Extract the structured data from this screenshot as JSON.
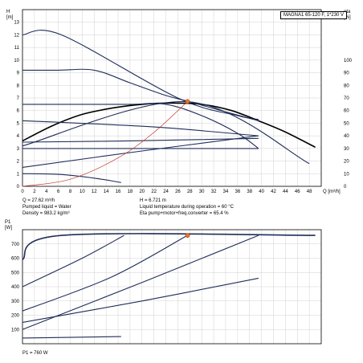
{
  "header": {
    "note": "MAGNA1 65-120 F,  1*230 V"
  },
  "info_top": {
    "left": [
      "Q = 27.62 m³/h",
      "Pumped liquid = Water",
      "Density = 983.2 kg/m³"
    ],
    "right": [
      "H = 6.721 m",
      "Liquid temperature during operation = 60 °C",
      "Eta pump+motor+freq.converter = 65.4 %"
    ]
  },
  "info_bottom": {
    "power": "P1 = 760 W"
  },
  "colors": {
    "navy": "#1f2d59",
    "black": "#000000",
    "system_curve": "#c0392b",
    "grid": "#d0d0d0",
    "duty_point": "#e8752b"
  },
  "chart_data": [
    {
      "type": "line",
      "title": "",
      "xlabel": "Q [m³/h]",
      "ylabel": "H [m]",
      "y2label": "eta [%]",
      "xlim": [
        0,
        50
      ],
      "ylim": [
        0,
        14
      ],
      "y2lim": [
        0,
        140
      ],
      "xticks": [
        0,
        2,
        4,
        6,
        8,
        10,
        12,
        14,
        16,
        18,
        20,
        22,
        24,
        26,
        28,
        30,
        32,
        34,
        36,
        38,
        40,
        42,
        44,
        46,
        48
      ],
      "yticks": [
        0,
        1,
        2,
        3,
        4,
        5,
        6,
        7,
        8,
        9,
        10,
        11,
        12,
        13
      ],
      "y2ticks": [
        0,
        10,
        20,
        30,
        40,
        50,
        60,
        70,
        80,
        90,
        100
      ],
      "grid": true,
      "duty_point": {
        "x": 27.62,
        "y": 6.721
      },
      "series": [
        {
          "kind": "qh-max",
          "x": [
            0,
            6.5,
            26,
            36,
            39.5
          ],
          "y": [
            12,
            12,
            7,
            5.6,
            5.3
          ]
        },
        {
          "kind": "qh-bold",
          "x": [
            0,
            5,
            10,
            15,
            20,
            25,
            30,
            35,
            40,
            44,
            49
          ],
          "y": [
            3.6,
            4.8,
            5.7,
            6.2,
            6.5,
            6.6,
            6.5,
            6.0,
            5.1,
            4.3,
            3.1
          ]
        },
        {
          "kind": "qh-mid",
          "x": [
            0,
            6,
            12,
            18,
            24,
            28,
            34,
            39.5
          ],
          "y": [
            9.2,
            9.2,
            9.2,
            8.2,
            7.2,
            6.7,
            5.9,
            5.2
          ]
        },
        {
          "kind": "qh-low",
          "x": [
            0,
            6,
            12,
            18,
            24,
            30,
            36,
            39.5
          ],
          "y": [
            6.5,
            6.5,
            6.5,
            6.5,
            6.5,
            5.6,
            4.2,
            3.0
          ]
        },
        {
          "kind": "qh-const",
          "x": [
            0,
            22,
            39.5
          ],
          "y": [
            5.2,
            4.7,
            4.0
          ]
        },
        {
          "kind": "qh-const",
          "x": [
            0,
            18,
            39.5
          ],
          "y": [
            3.5,
            3.6,
            3.8
          ]
        },
        {
          "kind": "qh-const",
          "x": [
            0,
            39.5
          ],
          "y": [
            3.0,
            3.0
          ]
        },
        {
          "kind": "qh-prop",
          "x": [
            0,
            20,
            39.5
          ],
          "y": [
            1.5,
            2.8,
            4.0
          ]
        },
        {
          "kind": "qh-small",
          "x": [
            0,
            6,
            12,
            16.5
          ],
          "y": [
            1.0,
            0.95,
            0.65,
            0.3
          ]
        },
        {
          "kind": "max-line",
          "x": [
            0,
            27.6,
            48
          ],
          "y": [
            3.2,
            6.7,
            1.8
          ]
        },
        {
          "kind": "system",
          "x": [
            0,
            8,
            16,
            22,
            27.62
          ],
          "y": [
            0,
            0.56,
            2.25,
            4.27,
            6.72
          ]
        }
      ]
    },
    {
      "type": "line",
      "title": "",
      "ylabel": "P1 [W]",
      "xlim": [
        0,
        50
      ],
      "ylim": [
        0,
        800
      ],
      "yticks": [
        100,
        200,
        300,
        400,
        500,
        600,
        700
      ],
      "grid": true,
      "duty_point": {
        "x": 27.62,
        "y": 760
      },
      "series": [
        {
          "kind": "max",
          "x": [
            0,
            6.6,
            49
          ],
          "y": [
            590,
            760,
            760
          ]
        },
        {
          "kind": "curve",
          "x": [
            0,
            10,
            17
          ],
          "y": [
            400,
            600,
            760
          ]
        },
        {
          "kind": "curve",
          "x": [
            0,
            15,
            27.6
          ],
          "y": [
            230,
            470,
            760
          ]
        },
        {
          "kind": "curve",
          "x": [
            0,
            20,
            39.5
          ],
          "y": [
            100,
            430,
            760
          ]
        },
        {
          "kind": "curve",
          "x": [
            0,
            20,
            39.5
          ],
          "y": [
            150,
            300,
            460
          ]
        },
        {
          "kind": "curve",
          "x": [
            0,
            16.5
          ],
          "y": [
            40,
            50
          ]
        }
      ]
    }
  ]
}
